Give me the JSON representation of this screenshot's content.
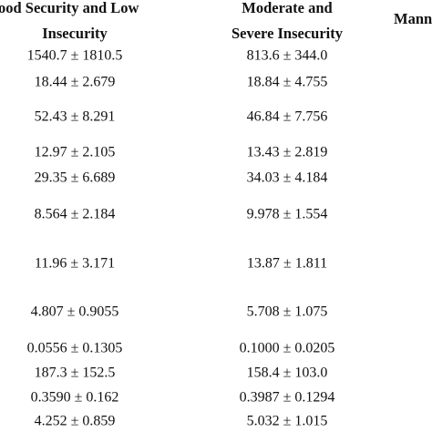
{
  "table": {
    "header": [
      [
        "ood Security and Low",
        "Insecurity"
      ],
      [
        "Moderate and",
        "Severe Insecurity"
      ],
      [
        "Mann"
      ]
    ],
    "rows": [
      [
        "1540.7 ± 1810.5",
        "813.6 ± 344.0"
      ],
      [
        "18.44 ± 2.679",
        "18.84 ± 4.755"
      ],
      [
        "52.43 ± 8.291",
        "46.84 ± 7.756"
      ],
      [
        "12.97 ± 2.105",
        "13.43 ± 2.819"
      ],
      [
        "29.35 ± 6.689",
        "34.03 ± 4.184"
      ],
      [
        "8.564 ± 2.184",
        "9.978 ± 1.554"
      ],
      [
        "11.96 ± 3.171",
        "13.87 ± 1.811"
      ],
      [
        "4.807 ± 0.9055",
        "5.708 ± 1.075"
      ],
      [
        "0.0556 ± 0.1305",
        "0.1000 ± 0.0205"
      ],
      [
        "187.3 ± 152.5",
        "158.4 ± 103.0"
      ],
      [
        "0.3590 ± 0.162",
        "0.3987 ± 0.1294"
      ],
      [
        "4.252 ± 0.859",
        "5.032 ± 1.015"
      ]
    ]
  }
}
